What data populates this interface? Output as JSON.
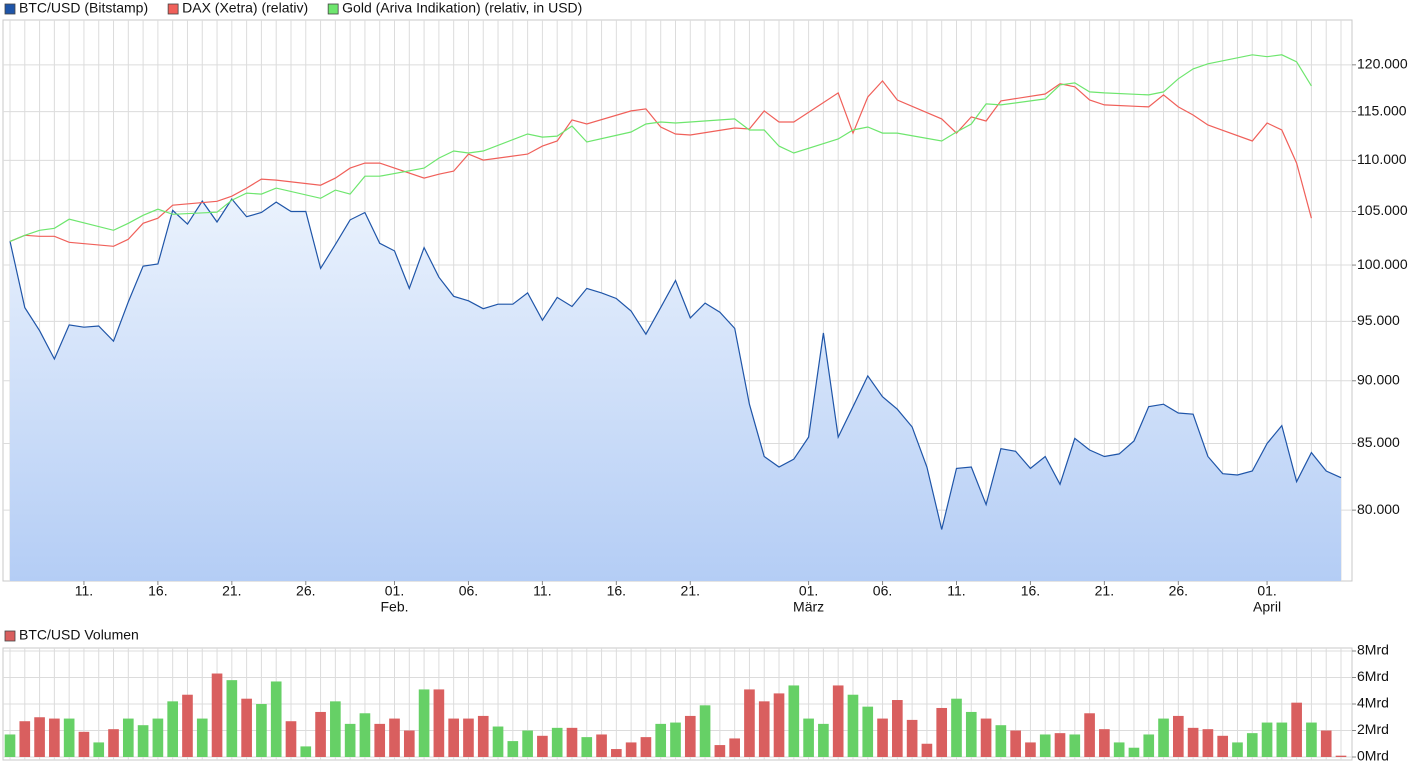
{
  "chart_data": [
    {
      "type": "line",
      "log": true,
      "grid": true,
      "x": [
        "01-06",
        "01-07",
        "01-08",
        "01-09",
        "01-10",
        "01-11",
        "01-12",
        "01-13",
        "01-14",
        "01-15",
        "01-16",
        "01-17",
        "01-18",
        "01-19",
        "01-20",
        "01-21",
        "01-22",
        "01-23",
        "01-24",
        "01-25",
        "01-26",
        "01-27",
        "01-28",
        "01-29",
        "01-30",
        "01-31",
        "02-01",
        "02-02",
        "02-03",
        "02-04",
        "02-05",
        "02-06",
        "02-07",
        "02-08",
        "02-09",
        "02-10",
        "02-11",
        "02-12",
        "02-13",
        "02-14",
        "02-15",
        "02-16",
        "02-17",
        "02-18",
        "02-19",
        "02-20",
        "02-21",
        "02-22",
        "02-23",
        "02-24",
        "02-25",
        "02-26",
        "02-27",
        "02-28",
        "03-01",
        "03-02",
        "03-03",
        "03-04",
        "03-05",
        "03-06",
        "03-07",
        "03-08",
        "03-09",
        "03-10",
        "03-11",
        "03-12",
        "03-13",
        "03-14",
        "03-15",
        "03-16",
        "03-17",
        "03-18",
        "03-19",
        "03-20",
        "03-21",
        "03-22",
        "03-23",
        "03-24",
        "03-25",
        "03-26",
        "03-27",
        "03-28",
        "03-29",
        "03-30",
        "03-31",
        "04-01",
        "04-02",
        "04-03",
        "04-04",
        "04-05",
        "04-06"
      ],
      "xlim": [
        "01-06",
        "04-06"
      ],
      "xticks": [
        {
          "value": "01-11",
          "label": "11."
        },
        {
          "value": "01-16",
          "label": "16."
        },
        {
          "value": "01-21",
          "label": "21."
        },
        {
          "value": "01-26",
          "label": "26."
        },
        {
          "value": "02-01",
          "label": "01."
        },
        {
          "value": "02-06",
          "label": "06."
        },
        {
          "value": "02-11",
          "label": "11."
        },
        {
          "value": "02-16",
          "label": "16."
        },
        {
          "value": "02-21",
          "label": "21."
        },
        {
          "value": "03-01",
          "label": "01."
        },
        {
          "value": "03-06",
          "label": "06."
        },
        {
          "value": "03-11",
          "label": "11."
        },
        {
          "value": "03-16",
          "label": "16."
        },
        {
          "value": "03-21",
          "label": "21."
        },
        {
          "value": "03-26",
          "label": "26."
        },
        {
          "value": "04-01",
          "label": "01."
        }
      ],
      "month_labels": [
        {
          "value": "02-01",
          "label": "Feb."
        },
        {
          "value": "03-01",
          "label": "März"
        },
        {
          "value": "04-01",
          "label": "April"
        }
      ],
      "ylim": [
        75000,
        125000
      ],
      "yticks": [
        {
          "value": 80000,
          "label": "80.000"
        },
        {
          "value": 85000,
          "label": "85.000"
        },
        {
          "value": 90000,
          "label": "90.000"
        },
        {
          "value": 95000,
          "label": "95.000"
        },
        {
          "value": 100000,
          "label": "100.000"
        },
        {
          "value": 105000,
          "label": "105.000"
        },
        {
          "value": 110000,
          "label": "110.000"
        },
        {
          "value": 115000,
          "label": "115.000"
        },
        {
          "value": 120000,
          "label": "120.000"
        }
      ],
      "series": [
        {
          "name": "BTC/USD (Bitstamp)",
          "color": "#1f55a8",
          "area": true,
          "values": [
            102200,
            96200,
            94200,
            91800,
            94700,
            94500,
            94600,
            93300,
            96700,
            99900,
            100100,
            105100,
            103800,
            106000,
            104000,
            106200,
            104500,
            104900,
            105900,
            105000,
            105000,
            99700,
            101900,
            104200,
            104900,
            102000,
            101300,
            97900,
            101600,
            98900,
            97200,
            96800,
            96100,
            96500,
            96500,
            97500,
            95100,
            97100,
            96300,
            97900,
            97500,
            97000,
            95900,
            93900,
            96200,
            98600,
            95300,
            96600,
            95800,
            94400,
            88100,
            84000,
            83200,
            83800,
            85500,
            94000,
            85500,
            87900,
            90400,
            88700,
            87700,
            86300,
            83200,
            78600,
            83100,
            83200,
            80400,
            84600,
            84400,
            83100,
            84000,
            81900,
            85400,
            84500,
            84000,
            84200,
            85200,
            87900,
            88100,
            87400,
            87300,
            84000,
            82700,
            82600,
            82900,
            85000,
            86400,
            82100,
            84300,
            82900,
            82400
          ]
        },
        {
          "name": "DAX (Xetra) (relativ)",
          "color": "#f0605a",
          "x": [
            "01-06",
            "01-07",
            "01-08",
            "01-09",
            "01-10",
            "01-13",
            "01-14",
            "01-15",
            "01-16",
            "01-17",
            "01-20",
            "01-21",
            "01-22",
            "01-23",
            "01-24",
            "01-27",
            "01-28",
            "01-29",
            "01-30",
            "01-31",
            "02-03",
            "02-04",
            "02-05",
            "02-06",
            "02-07",
            "02-10",
            "02-11",
            "02-12",
            "02-13",
            "02-14",
            "02-17",
            "02-18",
            "02-19",
            "02-20",
            "02-21",
            "02-24",
            "02-25",
            "02-26",
            "02-27",
            "02-28",
            "03-03",
            "03-04",
            "03-05",
            "03-06",
            "03-07",
            "03-10",
            "03-11",
            "03-12",
            "03-13",
            "03-14",
            "03-17",
            "03-18",
            "03-19",
            "03-20",
            "03-21",
            "03-24",
            "03-25",
            "03-26",
            "03-27",
            "03-28",
            "03-31",
            "04-01",
            "04-02",
            "04-03",
            "04-04"
          ],
          "values": [
            102180,
            102750,
            102650,
            102650,
            102090,
            101720,
            102370,
            103880,
            104360,
            105600,
            105980,
            106470,
            107260,
            108140,
            108040,
            107540,
            108240,
            109230,
            109730,
            109730,
            108240,
            108630,
            108930,
            110630,
            110030,
            110630,
            111440,
            111960,
            114130,
            113710,
            115070,
            115280,
            113400,
            112680,
            112570,
            113290,
            113190,
            115070,
            113910,
            113910,
            116970,
            112770,
            116540,
            118260,
            116220,
            114230,
            112770,
            114440,
            114020,
            116120,
            116860,
            117940,
            117620,
            116220,
            115700,
            115490,
            116760,
            115490,
            114640,
            113600,
            111960,
            113810,
            113090,
            109730,
            104360
          ]
        },
        {
          "name": "Gold (Ariva Indikation) (relativ, in USD)",
          "color": "#6ee66e",
          "x": [
            "01-06",
            "01-07",
            "01-08",
            "01-09",
            "01-10",
            "01-13",
            "01-14",
            "01-15",
            "01-16",
            "01-17",
            "01-20",
            "01-21",
            "01-22",
            "01-23",
            "01-24",
            "01-27",
            "01-28",
            "01-29",
            "01-30",
            "01-31",
            "02-03",
            "02-04",
            "02-05",
            "02-06",
            "02-07",
            "02-10",
            "02-11",
            "02-12",
            "02-13",
            "02-14",
            "02-17",
            "02-18",
            "02-19",
            "02-20",
            "02-21",
            "02-24",
            "02-25",
            "02-26",
            "02-27",
            "02-28",
            "03-03",
            "03-04",
            "03-05",
            "03-06",
            "03-07",
            "03-10",
            "03-11",
            "03-12",
            "03-13",
            "03-14",
            "03-17",
            "03-18",
            "03-19",
            "03-20",
            "03-21",
            "03-24",
            "03-25",
            "03-26",
            "03-27",
            "03-28",
            "03-31",
            "04-01",
            "04-02",
            "04-03",
            "04-04"
          ],
          "values": [
            102180,
            102750,
            103220,
            103400,
            104260,
            103220,
            103880,
            104640,
            105220,
            104730,
            104930,
            106080,
            106770,
            106670,
            107260,
            106270,
            107060,
            106670,
            108430,
            108430,
            109230,
            110230,
            110940,
            110740,
            110940,
            112680,
            112360,
            112460,
            113500,
            111860,
            112880,
            113710,
            113910,
            113810,
            113910,
            114230,
            113090,
            113090,
            111440,
            110740,
            112160,
            113090,
            113400,
            112770,
            112770,
            111960,
            112880,
            113710,
            115810,
            115700,
            116330,
            117830,
            118040,
            117080,
            116970,
            116760,
            117080,
            118480,
            119560,
            120110,
            121100,
            120890,
            121100,
            120330,
            117720
          ]
        }
      ]
    },
    {
      "type": "bar",
      "grid": true,
      "x": [
        "01-06",
        "01-07",
        "01-08",
        "01-09",
        "01-10",
        "01-11",
        "01-12",
        "01-13",
        "01-14",
        "01-15",
        "01-16",
        "01-17",
        "01-18",
        "01-19",
        "01-20",
        "01-21",
        "01-22",
        "01-23",
        "01-24",
        "01-25",
        "01-26",
        "01-27",
        "01-28",
        "01-29",
        "01-30",
        "01-31",
        "02-01",
        "02-02",
        "02-03",
        "02-04",
        "02-05",
        "02-06",
        "02-07",
        "02-08",
        "02-09",
        "02-10",
        "02-11",
        "02-12",
        "02-13",
        "02-14",
        "02-15",
        "02-16",
        "02-17",
        "02-18",
        "02-19",
        "02-20",
        "02-21",
        "02-22",
        "02-23",
        "02-24",
        "02-25",
        "02-26",
        "02-27",
        "02-28",
        "03-01",
        "03-02",
        "03-03",
        "03-04",
        "03-05",
        "03-06",
        "03-07",
        "03-08",
        "03-09",
        "03-10",
        "03-11",
        "03-12",
        "03-13",
        "03-14",
        "03-15",
        "03-16",
        "03-17",
        "03-18",
        "03-19",
        "03-20",
        "03-21",
        "03-22",
        "03-23",
        "03-24",
        "03-25",
        "03-26",
        "03-27",
        "03-28",
        "03-29",
        "03-30",
        "03-31",
        "04-01",
        "04-02",
        "04-03",
        "04-04",
        "04-05",
        "04-06"
      ],
      "xlim": [
        "01-06",
        "04-06"
      ],
      "ylim": [
        0,
        8
      ],
      "yticks": [
        {
          "value": 0,
          "label": "0Mrd"
        },
        {
          "value": 2,
          "label": "2Mrd"
        },
        {
          "value": 4,
          "label": "4Mrd"
        },
        {
          "value": 6,
          "label": "6Mrd"
        },
        {
          "value": 8,
          "label": "8Mrd"
        }
      ],
      "series": [
        {
          "name": "BTC/USD Volumen",
          "color": "#d95f5f",
          "values": [
            1.7,
            2.7,
            3.0,
            2.9,
            2.9,
            1.9,
            1.1,
            2.1,
            2.9,
            2.4,
            2.9,
            4.2,
            4.7,
            2.9,
            6.3,
            5.8,
            4.4,
            4.0,
            5.7,
            2.7,
            0.8,
            3.4,
            4.2,
            2.5,
            3.3,
            2.5,
            2.9,
            2.0,
            5.1,
            5.1,
            2.9,
            2.9,
            3.1,
            2.3,
            1.2,
            2.0,
            1.6,
            2.2,
            2.2,
            1.5,
            1.7,
            0.6,
            1.1,
            1.5,
            2.5,
            2.6,
            3.1,
            3.9,
            0.9,
            1.4,
            5.1,
            4.2,
            4.8,
            5.4,
            2.9,
            2.5,
            5.4,
            4.7,
            3.8,
            2.9,
            4.3,
            2.8,
            1.0,
            3.7,
            4.4,
            3.4,
            2.9,
            2.4,
            2.0,
            1.1,
            1.7,
            1.8,
            1.7,
            3.3,
            2.1,
            1.1,
            0.7,
            1.7,
            2.9,
            3.1,
            2.2,
            2.1,
            1.6,
            1.1,
            1.8,
            2.6,
            2.6,
            4.1,
            2.6,
            2.0,
            0.1
          ],
          "colors": [
            "#66d066",
            "#d95f5f",
            "#d95f5f",
            "#d95f5f",
            "#66d066",
            "#d95f5f",
            "#66d066",
            "#d95f5f",
            "#66d066",
            "#66d066",
            "#66d066",
            "#66d066",
            "#d95f5f",
            "#66d066",
            "#d95f5f",
            "#66d066",
            "#d95f5f",
            "#66d066",
            "#66d066",
            "#d95f5f",
            "#66d066",
            "#d95f5f",
            "#66d066",
            "#66d066",
            "#66d066",
            "#d95f5f",
            "#d95f5f",
            "#d95f5f",
            "#66d066",
            "#d95f5f",
            "#d95f5f",
            "#d95f5f",
            "#d95f5f",
            "#66d066",
            "#66d066",
            "#66d066",
            "#d95f5f",
            "#66d066",
            "#d95f5f",
            "#66d066",
            "#d95f5f",
            "#d95f5f",
            "#d95f5f",
            "#d95f5f",
            "#66d066",
            "#66d066",
            "#d95f5f",
            "#66d066",
            "#d95f5f",
            "#d95f5f",
            "#d95f5f",
            "#d95f5f",
            "#d95f5f",
            "#66d066",
            "#66d066",
            "#66d066",
            "#d95f5f",
            "#66d066",
            "#66d066",
            "#d95f5f",
            "#d95f5f",
            "#d95f5f",
            "#d95f5f",
            "#d95f5f",
            "#66d066",
            "#66d066",
            "#d95f5f",
            "#66d066",
            "#d95f5f",
            "#d95f5f",
            "#66d066",
            "#d95f5f",
            "#66d066",
            "#d95f5f",
            "#d95f5f",
            "#66d066",
            "#66d066",
            "#66d066",
            "#66d066",
            "#d95f5f",
            "#d95f5f",
            "#d95f5f",
            "#d95f5f",
            "#66d066",
            "#66d066",
            "#66d066",
            "#66d066",
            "#d95f5f",
            "#66d066",
            "#d95f5f",
            "#d95f5f"
          ]
        }
      ]
    }
  ]
}
